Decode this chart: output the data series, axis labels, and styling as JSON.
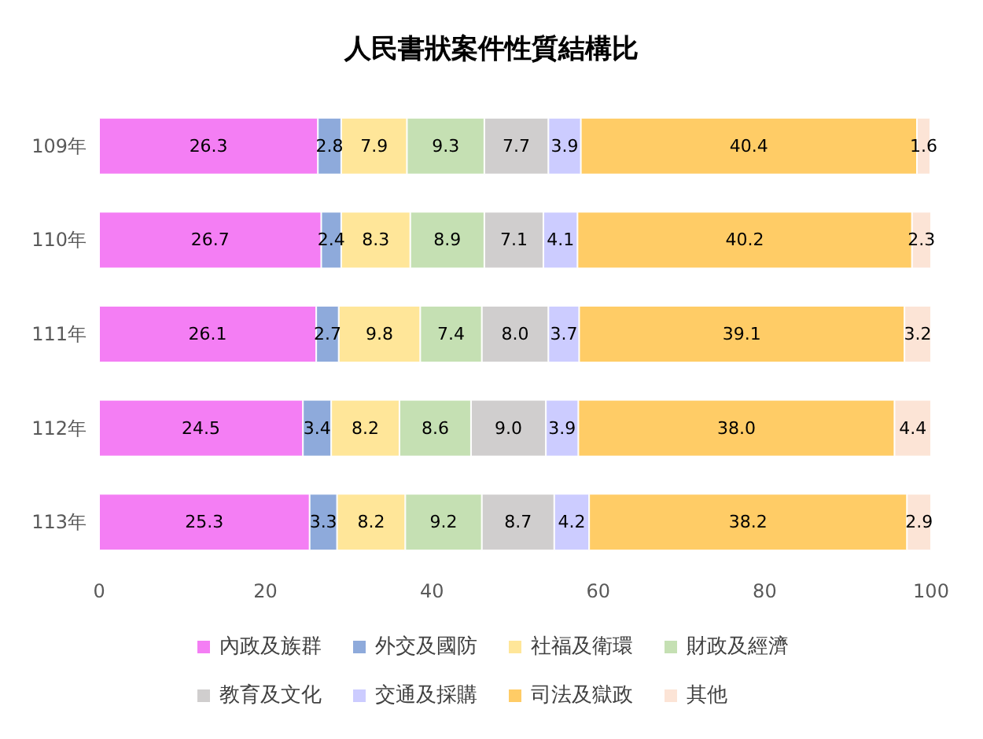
{
  "chart_data": {
    "type": "bar",
    "title": "人民書狀案件性質結構比",
    "orientation": "horizontal",
    "stacked": true,
    "grid": false,
    "legend": "bottom",
    "categories": [
      "109年",
      "110年",
      "111年",
      "112年",
      "113年"
    ],
    "xlim": [
      0,
      100
    ],
    "xticks": [
      0,
      20,
      40,
      60,
      80,
      100
    ],
    "series": [
      {
        "name": "內政及族群",
        "color": "#f47ef4",
        "values": [
          26.3,
          26.7,
          26.1,
          24.5,
          25.3
        ],
        "value_labels": [
          "26.3",
          "26.7",
          "26.1",
          "24.5",
          "25.3"
        ]
      },
      {
        "name": "外交及國防",
        "color": "#8eaadb",
        "values": [
          2.8,
          2.4,
          2.7,
          3.4,
          3.3
        ],
        "value_labels": [
          "2.8",
          "2.4",
          "2.7",
          "3.4",
          "3.3"
        ]
      },
      {
        "name": "社福及衛環",
        "color": "#ffe699",
        "values": [
          7.9,
          8.3,
          9.8,
          8.2,
          8.2
        ],
        "value_labels": [
          "7.9",
          "8.3",
          "9.8",
          "8.2",
          "8.2"
        ]
      },
      {
        "name": "財政及經濟",
        "color": "#c5e0b3",
        "values": [
          9.3,
          8.9,
          7.4,
          8.6,
          9.2
        ],
        "value_labels": [
          "9.3",
          "8.9",
          "7.4",
          "8.6",
          "9.2"
        ]
      },
      {
        "name": "教育及文化",
        "color": "#d0cece",
        "values": [
          7.7,
          7.1,
          8,
          9,
          8.7
        ],
        "value_labels": [
          "7.7",
          "7.1",
          "8.0",
          "9.0",
          "8.7"
        ]
      },
      {
        "name": "交通及採購",
        "color": "#ccccff",
        "values": [
          3.9,
          4.1,
          3.7,
          3.9,
          4.2
        ],
        "value_labels": [
          "3.9",
          "4.1",
          "3.7",
          "3.9",
          "4.2"
        ]
      },
      {
        "name": "司法及獄政",
        "color": "#ffcc66",
        "values": [
          40.4,
          40.2,
          39.1,
          38,
          38.2
        ],
        "value_labels": [
          "40.4",
          "40.2",
          "39.1",
          "38.0",
          "38.2"
        ]
      },
      {
        "name": "其他",
        "color": "#fce4d6",
        "values": [
          1.6,
          2.3,
          3.2,
          4.4,
          2.9
        ],
        "value_labels": [
          "1.6",
          "2.3",
          "3.2",
          "4.4",
          "2.9"
        ]
      }
    ]
  }
}
